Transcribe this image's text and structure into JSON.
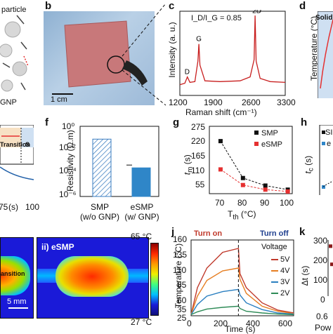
{
  "panels": {
    "b": "b",
    "c": "c",
    "d": "d",
    "f": "f",
    "g": "g",
    "h": "h",
    "j": "j",
    "k": "k"
  },
  "panel_a": {
    "particle_label": "particle",
    "gnp_label": "GNP"
  },
  "panel_b": {
    "scale_label": "1 cm"
  },
  "panel_c": {
    "annotation": "I_D/I_G = 0.85",
    "peak_labels": [
      "D",
      "G",
      "2D"
    ],
    "xlabel": "Raman shift (cm⁻¹)",
    "ylabel": "Intensity (a. u.)",
    "xticks": [
      "1200",
      "1900",
      "2600",
      "3300"
    ]
  },
  "panel_d": {
    "ylabel": "Temperature (°C)",
    "inset_label": "Solid"
  },
  "panel_e": {
    "transition_label": "Transition",
    "s_label": "S",
    "xticks": [
      "75",
      "100"
    ],
    "xlabel_fragment": "(s)"
  },
  "panel_f": {
    "ylabel": "Resistivity (Ω.m)",
    "yticks": [
      "10⁰",
      "10⁻²",
      "10⁻⁴",
      "10⁻⁶"
    ],
    "bars": [
      {
        "label_line1": "SMP",
        "label_line2": "(w/o GNP)"
      },
      {
        "label_line1": "eSMP",
        "label_line2": "(w/ GNP)"
      }
    ]
  },
  "panel_g": {
    "ylabel": "t_m (s)",
    "xlabel": "T_th (°C)",
    "yticks": [
      "275",
      "220",
      "165",
      "110",
      "55"
    ],
    "xticks": [
      "70",
      "80",
      "90",
      "100"
    ],
    "legend": [
      "SMP",
      "eSMP"
    ]
  },
  "panel_h": {
    "ylabel": "t_c (s)",
    "legend_fragments": [
      "SI",
      "e"
    ]
  },
  "panel_i": {
    "sublabel": "ii) eSMP",
    "scale_label": "5 mm",
    "colorbar_max": "65 °C",
    "colorbar_min": "27 °C"
  },
  "panel_j": {
    "turn_on": "Turn on",
    "turn_off": "Turn off",
    "ylabel": "Temperature (°C)",
    "xlabel": "Time (s)",
    "yticks": [
      "160",
      "135",
      "110",
      "85",
      "60",
      "35",
      "25"
    ],
    "xticks": [
      "0",
      "200",
      "400",
      "600"
    ],
    "legend_title": "Voltage",
    "legend": [
      "5V",
      "4V",
      "3V",
      "2V"
    ]
  },
  "panel_k": {
    "ylabel": "Δt (s)",
    "yticks": [
      "300",
      "200",
      "100",
      "0"
    ],
    "xtick_fragment": "0.6",
    "xlabel_fragment": "Pow"
  },
  "colors": {
    "smp": "#111111",
    "esmp": "#e53030",
    "raman": "#c81e1e",
    "bar_esmp": "#2f86c8",
    "v5": "#c0392b",
    "v4": "#e67e22",
    "v3": "#2a7fc0",
    "v2": "#2e8b57",
    "k_marker": "#8b1a1a"
  },
  "chart_data": [
    {
      "panel": "c",
      "type": "line",
      "title": "",
      "xlabel": "Raman shift (cm⁻¹)",
      "ylabel": "Intensity (a. u.)",
      "xlim": [
        1200,
        3300
      ],
      "peaks": [
        {
          "label": "D",
          "x": 1350
        },
        {
          "label": "G",
          "x": 1580
        },
        {
          "label": "2D",
          "x": 2700
        }
      ],
      "x": [
        1200,
        1300,
        1350,
        1400,
        1500,
        1560,
        1580,
        1600,
        1700,
        2000,
        2400,
        2600,
        2680,
        2700,
        2720,
        2800,
        3000,
        3300
      ],
      "y": [
        0.1,
        0.12,
        0.2,
        0.13,
        0.14,
        0.4,
        0.62,
        0.35,
        0.15,
        0.14,
        0.15,
        0.2,
        0.42,
        0.98,
        0.4,
        0.18,
        0.14,
        0.13
      ]
    },
    {
      "panel": "f",
      "type": "bar",
      "categories": [
        "SMP (w/o GNP)",
        "eSMP (w/ GNP)"
      ],
      "values": [
        0.08,
        0.00028
      ],
      "log_scale": true,
      "ylim": [
        1e-06,
        1
      ]
    },
    {
      "panel": "g",
      "type": "scatter",
      "x": [
        70,
        80,
        90,
        100
      ],
      "series": [
        {
          "name": "SMP",
          "values": [
            225,
            88,
            60,
            45
          ]
        },
        {
          "name": "eSMP",
          "values": [
            120,
            62,
            45,
            38
          ]
        }
      ],
      "xlim": [
        65,
        102
      ],
      "ylim": [
        30,
        280
      ]
    },
    {
      "panel": "j",
      "type": "line",
      "xlim": [
        0,
        650
      ],
      "ylim": [
        25,
        160
      ],
      "switch_time": 300,
      "series": [
        {
          "name": "5V",
          "x": [
            0,
            40,
            100,
            200,
            300,
            310,
            350,
            450,
            550,
            650
          ],
          "values": [
            27,
            75,
            110,
            138,
            145,
            100,
            75,
            48,
            35,
            30
          ]
        },
        {
          "name": "4V",
          "x": [
            0,
            40,
            100,
            200,
            300,
            310,
            350,
            450,
            550,
            650
          ],
          "values": [
            27,
            60,
            88,
            105,
            110,
            90,
            65,
            42,
            33,
            29
          ]
        },
        {
          "name": "3V",
          "x": [
            0,
            40,
            100,
            200,
            300,
            310,
            350,
            450,
            550,
            650
          ],
          "values": [
            27,
            45,
            60,
            68,
            72,
            62,
            48,
            36,
            30,
            28
          ]
        },
        {
          "name": "2V",
          "x": [
            0,
            40,
            100,
            200,
            300,
            310,
            350,
            450,
            550,
            650
          ],
          "values": [
            27,
            32,
            37,
            40,
            42,
            38,
            33,
            30,
            28,
            27
          ]
        }
      ]
    },
    {
      "panel": "k",
      "type": "scatter",
      "ylim": [
        0,
        300
      ],
      "x_visible": [
        0.6,
        0.8
      ],
      "values": [
        265,
        168
      ]
    }
  ]
}
